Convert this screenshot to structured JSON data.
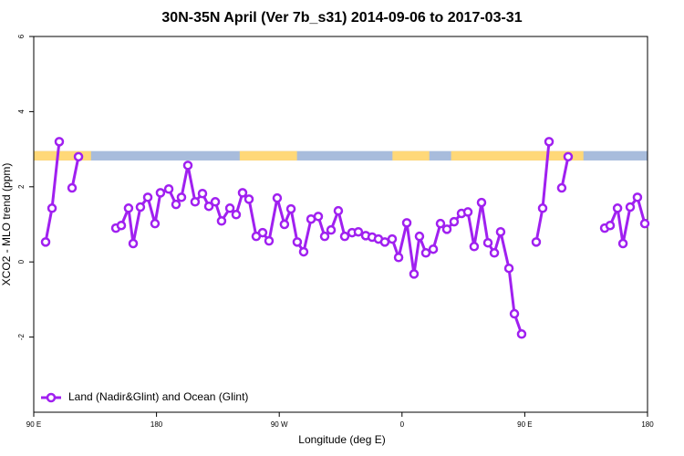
{
  "chart_data": {
    "type": "line",
    "title": "30N-35N April (Ver 7b_s31)   2014-09-06 to 2017-03-31",
    "xlabel": "Longitude (deg E)",
    "ylabel": "XCO2 - MLO trend (ppm)",
    "xlim": [
      90,
      540
    ],
    "xticks": [
      {
        "value": 90,
        "label": "90 E"
      },
      {
        "value": 180,
        "label": "180"
      },
      {
        "value": 270,
        "label": "90 W"
      },
      {
        "value": 360,
        "label": "0"
      },
      {
        "value": 450,
        "label": "90 E"
      },
      {
        "value": 540,
        "label": "180"
      }
    ],
    "ylim": [
      -4,
      6
    ],
    "yticks": [
      -2,
      0,
      2,
      4,
      6
    ],
    "legend": "bottomleft",
    "band": {
      "range": [
        2.7,
        2.95
      ],
      "ocean_color": "#a8bcdc",
      "land_color": "#ffd878",
      "land": [
        [
          90,
          132
        ],
        [
          241,
          283
        ],
        [
          353,
          380
        ],
        [
          396,
          493
        ]
      ]
    },
    "series": [
      {
        "name": "Land (Nadir&Glint) and Ocean (Glint)",
        "color": "#a020f0",
        "x": [
          98.7,
          103.4,
          108.7,
          null,
          118.1,
          122.8,
          null,
          150.2,
          154.2,
          159.5,
          162.9,
          168.2,
          173.6,
          178.9,
          182.9,
          189.0,
          194.3,
          198.3,
          203.0,
          208.3,
          213.7,
          218.4,
          223.1,
          227.7,
          233.8,
          238.4,
          243.1,
          247.8,
          253.1,
          257.8,
          262.5,
          268.5,
          273.8,
          278.6,
          283.2,
          287.9,
          293.3,
          298.6,
          303.3,
          308.0,
          313.3,
          318.0,
          323.4,
          328.0,
          333.4,
          338.1,
          342.7,
          347.4,
          352.8,
          357.5,
          363.5,
          368.8,
          372.8,
          377.5,
          382.9,
          388.2,
          392.9,
          398.2,
          403.6,
          408.3,
          412.9,
          418.3,
          423.0,
          427.7,
          432.3,
          438.4,
          442.4,
          447.7,
          null,
          458.4,
          463.1,
          467.8,
          null,
          477.1,
          481.8,
          null,
          508.6,
          512.6,
          518.0,
          522.0,
          527.3,
          532.6,
          538.0
        ],
        "values": [
          0.53,
          1.43,
          3.2,
          null,
          1.97,
          2.8,
          null,
          0.9,
          0.97,
          1.43,
          0.49,
          1.46,
          1.72,
          1.02,
          1.84,
          1.94,
          1.53,
          1.72,
          2.57,
          1.6,
          1.82,
          1.48,
          1.6,
          1.09,
          1.43,
          1.26,
          1.84,
          1.67,
          0.68,
          0.78,
          0.56,
          1.7,
          1.0,
          1.41,
          0.53,
          0.27,
          1.14,
          1.21,
          0.68,
          0.85,
          1.36,
          0.68,
          0.78,
          0.8,
          0.7,
          0.66,
          0.61,
          0.53,
          0.61,
          0.12,
          1.04,
          -0.32,
          0.68,
          0.24,
          0.34,
          1.02,
          0.87,
          1.07,
          1.29,
          1.33,
          0.41,
          1.58,
          0.51,
          0.24,
          0.8,
          -0.17,
          -1.38,
          -1.92,
          null,
          0.53,
          1.43,
          3.2,
          null,
          1.97,
          2.8,
          null,
          0.9,
          0.97,
          1.43,
          0.49,
          1.46,
          1.72,
          1.02
        ]
      }
    ]
  }
}
